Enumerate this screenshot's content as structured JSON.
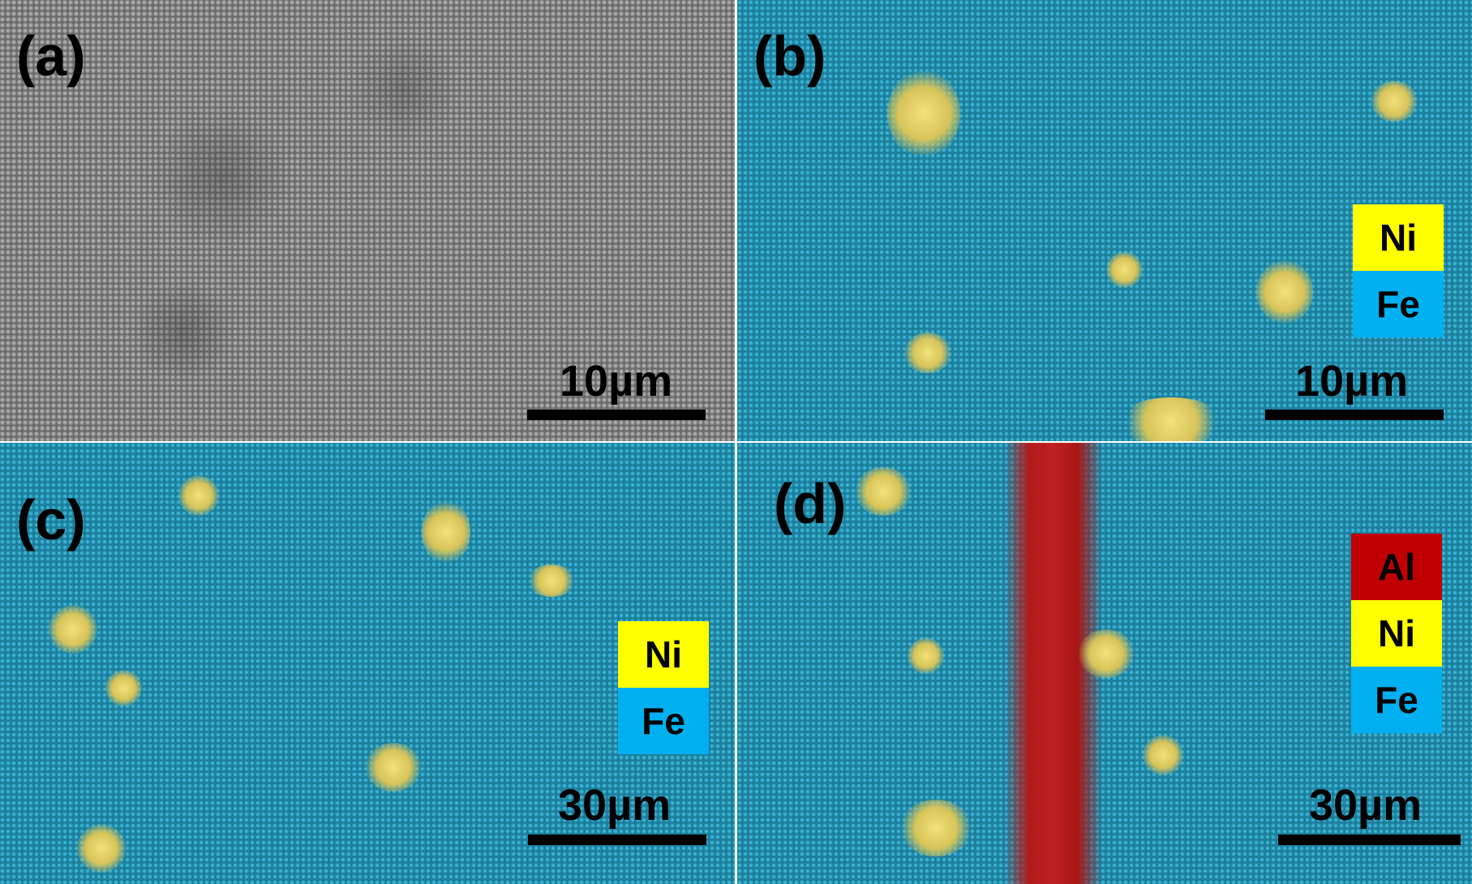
{
  "panels": [
    {
      "label": "(a)",
      "scale_bar": "10µm",
      "type": "SEM"
    },
    {
      "label": "(b)",
      "scale_bar": "10µm",
      "legend": [
        {
          "element": "Ni",
          "color": "#ffff00"
        },
        {
          "element": "Fe",
          "color": "#00b0f0"
        }
      ]
    },
    {
      "label": "(c)",
      "scale_bar": "30µm",
      "legend": [
        {
          "element": "Ni",
          "color": "#ffff00"
        },
        {
          "element": "Fe",
          "color": "#00b0f0"
        }
      ]
    },
    {
      "label": "(d)",
      "scale_bar": "30µm",
      "legend": [
        {
          "element": "Al",
          "color": "#c00000"
        },
        {
          "element": "Ni",
          "color": "#ffff00"
        },
        {
          "element": "Fe",
          "color": "#00b0f0"
        }
      ]
    }
  ]
}
